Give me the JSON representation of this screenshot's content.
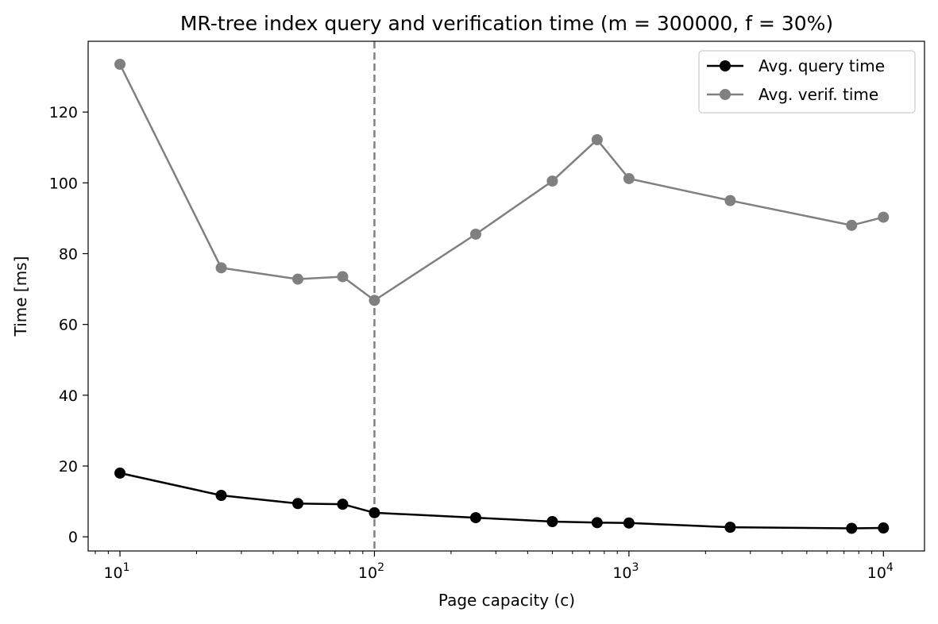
{
  "chart_data": {
    "type": "line",
    "title": "MR-tree index query and verification time (m = 300000, f = 30%)",
    "xlabel": "Page capacity (c)",
    "ylabel": "Time [ms]",
    "x_scale": "log",
    "xlim": [
      7.5,
      14500
    ],
    "ylim": [
      -4,
      140
    ],
    "x_ticks": [
      {
        "value": 10,
        "base": "10",
        "exp": "1"
      },
      {
        "value": 100,
        "base": "10",
        "exp": "2"
      },
      {
        "value": 1000,
        "base": "10",
        "exp": "3"
      },
      {
        "value": 10000,
        "base": "10",
        "exp": "4"
      }
    ],
    "y_ticks": [
      {
        "value": 0,
        "label": "0"
      },
      {
        "value": 20,
        "label": "20"
      },
      {
        "value": 40,
        "label": "40"
      },
      {
        "value": 60,
        "label": "60"
      },
      {
        "value": 80,
        "label": "80"
      },
      {
        "value": 100,
        "label": "100"
      },
      {
        "value": 120,
        "label": "120"
      }
    ],
    "x": [
      10,
      25,
      50,
      75,
      100,
      250,
      500,
      750,
      1000,
      2500,
      7500,
      10000
    ],
    "series": [
      {
        "name": "Avg. query time",
        "color": "#000000",
        "marker": "circle",
        "values": [
          18.0,
          11.7,
          9.4,
          9.2,
          6.8,
          5.4,
          4.3,
          4.0,
          3.9,
          2.7,
          2.4,
          2.5
        ]
      },
      {
        "name": "Avg. verif. time",
        "color": "#808080",
        "marker": "circle",
        "values": [
          133.5,
          76.0,
          72.8,
          73.5,
          66.8,
          85.5,
          100.5,
          112.2,
          101.2,
          95.0,
          88.0,
          90.3
        ]
      }
    ],
    "vline": {
      "x": 100,
      "style": "dashed",
      "color": "#808080"
    },
    "grid": false,
    "legend_position": "top-right"
  }
}
